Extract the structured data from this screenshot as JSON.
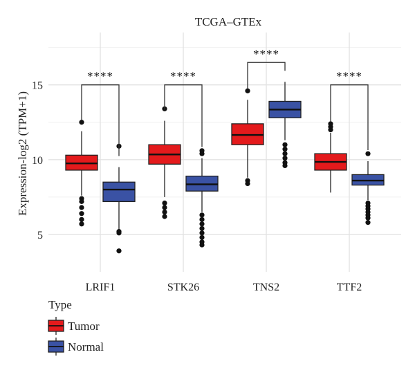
{
  "chart_data": {
    "type": "box",
    "title": "TCGA–GTEx",
    "xlabel": "",
    "ylabel": "Expression-log2 (TPM+1)",
    "ylim": [
      2.5,
      18.5
    ],
    "yticks": [
      5,
      10,
      15
    ],
    "grid": true,
    "categories": [
      "LRIF1",
      "STK26",
      "TNS2",
      "TTF2"
    ],
    "legend": {
      "title": "Type",
      "position": "bottom-left"
    },
    "series": [
      {
        "name": "Tumor",
        "color": "#e41a1c",
        "boxes": [
          {
            "category": "LRIF1",
            "whisker_low": 7.6,
            "q1": 9.3,
            "median": 9.75,
            "q3": 10.3,
            "whisker_high": 11.9,
            "outliers": [
              5.7,
              6.0,
              6.4,
              6.8,
              7.2,
              7.4,
              12.5
            ]
          },
          {
            "category": "STK26",
            "whisker_low": 7.5,
            "q1": 9.7,
            "median": 10.35,
            "q3": 11.0,
            "whisker_high": 12.6,
            "outliers": [
              6.2,
              6.5,
              6.8,
              7.1,
              13.4
            ]
          },
          {
            "category": "TNS2",
            "whisker_low": 8.8,
            "q1": 11.0,
            "median": 11.65,
            "q3": 12.4,
            "whisker_high": 14.0,
            "outliers": [
              8.4,
              8.6,
              14.6
            ]
          },
          {
            "category": "TTF2",
            "whisker_low": 7.8,
            "q1": 9.3,
            "median": 9.85,
            "q3": 10.4,
            "whisker_high": 11.8,
            "outliers": [
              12.0,
              12.2,
              12.4
            ]
          }
        ]
      },
      {
        "name": "Normal",
        "color": "#3a52a4",
        "boxes": [
          {
            "category": "LRIF1",
            "whisker_low": 5.3,
            "q1": 7.2,
            "median": 8.0,
            "q3": 8.5,
            "whisker_high": 9.5,
            "outliers": [
              3.9,
              5.1,
              5.2,
              10.9
            ]
          },
          {
            "category": "STK26",
            "whisker_low": 6.5,
            "q1": 7.9,
            "median": 8.35,
            "q3": 8.9,
            "whisker_high": 10.1,
            "outliers": [
              4.3,
              4.5,
              4.8,
              5.1,
              5.4,
              5.7,
              6.0,
              6.3,
              10.4,
              10.6
            ]
          },
          {
            "category": "TNS2",
            "whisker_low": 11.3,
            "q1": 12.8,
            "median": 13.35,
            "q3": 13.9,
            "whisker_high": 15.2,
            "outliers": [
              9.6,
              9.8,
              10.1,
              10.4,
              10.7,
              11.0
            ]
          },
          {
            "category": "TTF2",
            "whisker_low": 7.3,
            "q1": 8.3,
            "median": 8.6,
            "q3": 9.0,
            "whisker_high": 9.9,
            "outliers": [
              5.8,
              6.1,
              6.3,
              6.5,
              6.7,
              6.9,
              7.1,
              10.4
            ]
          }
        ]
      }
    ],
    "annotations": [
      {
        "category": "LRIF1",
        "label": "****",
        "y": 15.0
      },
      {
        "category": "STK26",
        "label": "****",
        "y": 15.0
      },
      {
        "category": "TNS2",
        "label": "****",
        "y": 16.5
      },
      {
        "category": "TTF2",
        "label": "****",
        "y": 15.0
      }
    ]
  }
}
